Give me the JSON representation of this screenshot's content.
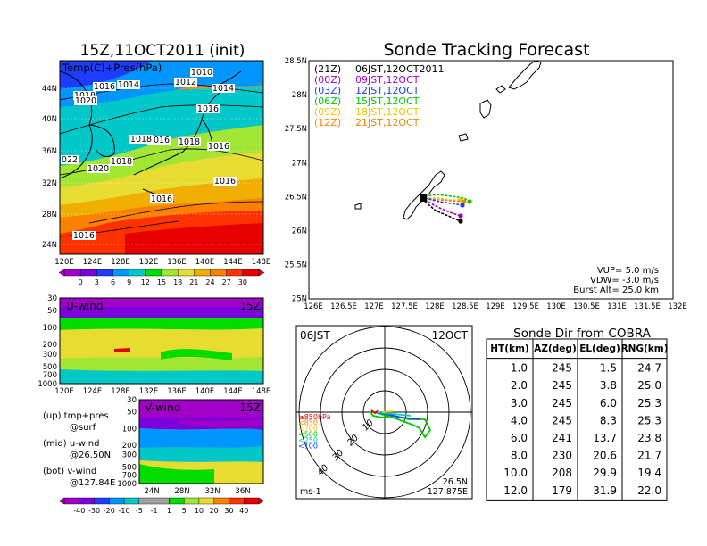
{
  "left_title": "15Z,11OCT2011 (init)",
  "right_title": "Sonde Tracking Forecast",
  "map_panel": {
    "label": "Temp(C)+Pres(hPa)",
    "lat_labels": [
      "44N",
      "40N",
      "36N",
      "32N",
      "28N",
      "24N"
    ],
    "lon_labels": [
      "120E",
      "124E",
      "128E",
      "132E",
      "136E",
      "140E",
      "144E",
      "148E"
    ],
    "pressure_labels": [
      "1010",
      "1012",
      "1014",
      "1016",
      "1018",
      "1020",
      "1022"
    ],
    "isobar_labels": [
      {
        "t": "1010"
      },
      {
        "t": "1012"
      },
      {
        "t": "1014"
      },
      {
        "t": "1014"
      },
      {
        "t": "1016"
      },
      {
        "t": "1018"
      },
      {
        "t": "1016"
      },
      {
        "t": "1020"
      },
      {
        "t": "1016"
      },
      {
        "t": "1018"
      },
      {
        "t": "1018"
      },
      {
        "t": "1016"
      },
      {
        "t": "022"
      },
      {
        "t": "1020"
      },
      {
        "t": "1018"
      },
      {
        "t": "1016"
      },
      {
        "t": "1016"
      },
      {
        "t": "1016"
      }
    ],
    "colorbar": {
      "ticks": [
        "0",
        "3",
        "6",
        "9",
        "12",
        "15",
        "18",
        "21",
        "24",
        "27",
        "30"
      ],
      "colors": [
        "#a000c8",
        "#7d00dc",
        "#1e3cff",
        "#0096ff",
        "#00c8c8",
        "#00dc00",
        "#a0e632",
        "#e6dc32",
        "#f0af00",
        "#fa8200",
        "#ff3200",
        "#e60000"
      ]
    }
  },
  "u_panel": {
    "label": "U-wind",
    "time": "15Z",
    "pressure_ticks": [
      "30",
      "50",
      "100",
      "200",
      "300",
      "500",
      "700",
      "1000"
    ],
    "lon_labels": [
      "120E",
      "124E",
      "128E",
      "132E",
      "136E",
      "140E",
      "144E",
      "148E"
    ]
  },
  "v_panel": {
    "label": "V-wind",
    "time": "15Z",
    "pressure_ticks": [
      "30",
      "50",
      "100",
      "200",
      "300",
      "500",
      "700",
      "1000"
    ],
    "lat_labels": [
      "24N",
      "28N",
      "32N",
      "36N"
    ]
  },
  "notes": {
    "up": "(up) tmp+pres",
    "up2": "@surf",
    "mid": "(mid) u-wind",
    "mid2": "@26.50N",
    "bot": "(bot) v-wind",
    "bot2": "@127.84E"
  },
  "wind_colorbar": {
    "ticks": [
      "-40",
      "-30",
      "-20",
      "-10",
      "-5",
      "-1",
      "1",
      "5",
      "10",
      "20",
      "30",
      "40"
    ],
    "colors": [
      "#a000c8",
      "#7d00dc",
      "#1e3cff",
      "#0096ff",
      "#00c8c8",
      "#a0a0a0",
      "#a0a0a0",
      "#00dc00",
      "#a0e632",
      "#e6dc32",
      "#fa8200",
      "#ff3200",
      "#e60000"
    ]
  },
  "track_panel": {
    "x_labels": [
      "126E",
      "126.5E",
      "127E",
      "127.5E",
      "128E",
      "128.5E",
      "129E",
      "129.5E",
      "130E",
      "130.5E",
      "131E",
      "131.5E",
      "132E"
    ],
    "y_labels": [
      "28.5N",
      "28N",
      "27.5N",
      "27N",
      "26.5N",
      "26N",
      "25.5N",
      "25N"
    ],
    "legend": [
      {
        "code": "(21Z)",
        "time": "06JST,12OCT2011",
        "color": "#000000"
      },
      {
        "code": "(00Z)",
        "time": "09JST,12OCT",
        "color": "#a000c8"
      },
      {
        "code": "(03Z)",
        "time": "12JST,12OCT",
        "color": "#1e3cff"
      },
      {
        "code": "(06Z)",
        "time": "15JST,12OCT",
        "color": "#00c800"
      },
      {
        "code": "(09Z)",
        "time": "18JST,12OCT",
        "color": "#e6c800"
      },
      {
        "code": "(12Z)",
        "time": "21JST,12OCT",
        "color": "#fa8200"
      }
    ],
    "params": {
      "vup": "VUP= 5.0 m/s",
      "vdw": "VDW= -3.0 m/s",
      "burst": "Burst Alt= 25.0 km"
    }
  },
  "polar_panel": {
    "left": "06JST",
    "right": "12OCT",
    "unit": "ms-1",
    "pos1": "26.5N",
    "pos2": "127.875E",
    "ring_labels": [
      "10",
      "20",
      "30",
      "40"
    ],
    "pressure_legend": [
      {
        "t": "≥850hPa",
        "c": "#e60000"
      },
      {
        "t": "<850",
        "c": "#fa8200"
      },
      {
        "t": "<700",
        "c": "#e6c800"
      },
      {
        "t": "<500",
        "c": "#00c800"
      },
      {
        "t": "<250",
        "c": "#00c8c8"
      },
      {
        "t": "<100",
        "c": "#1e3cff"
      }
    ]
  },
  "table": {
    "title": "Sonde Dir from COBRA",
    "headers": [
      "HT(km)",
      "AZ(deg)",
      "EL(deg)",
      "RNG(km)"
    ],
    "rows": [
      [
        "1.0",
        "245",
        "1.5",
        "24.7"
      ],
      [
        "2.0",
        "245",
        "3.8",
        "25.0"
      ],
      [
        "3.0",
        "245",
        "6.0",
        "25.3"
      ],
      [
        "4.0",
        "245",
        "8.3",
        "25.3"
      ],
      [
        "6.0",
        "241",
        "13.7",
        "23.8"
      ],
      [
        "8.0",
        "230",
        "20.6",
        "21.7"
      ],
      [
        "10.0",
        "208",
        "29.9",
        "19.4"
      ],
      [
        "12.0",
        "179",
        "31.9",
        "22.0"
      ]
    ]
  }
}
